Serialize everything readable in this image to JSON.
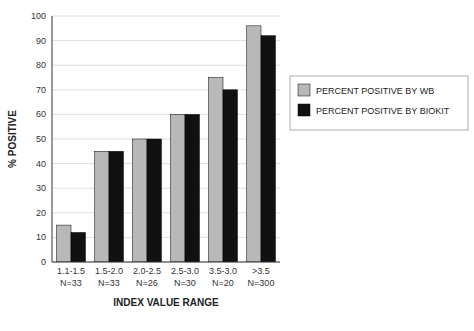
{
  "chart_data": {
    "type": "bar",
    "categories": [
      "1.1-1.5",
      "1.5-2.0",
      "2.0-2.5",
      "2.5-3.0",
      "3.5-3.0",
      ">3.5"
    ],
    "annotations": [
      "N=33",
      "N=33",
      "N=26",
      "N=30",
      "N=20",
      "N=300"
    ],
    "series": [
      {
        "name": "PERCENT POSITIVE BY WB",
        "color": "#b8b8b8",
        "values": [
          15,
          45,
          50,
          60,
          75,
          96
        ]
      },
      {
        "name": "PERCENT POSITIVE BY BIOKIT",
        "color": "#111111",
        "values": [
          12,
          45,
          50,
          60,
          70,
          92
        ]
      }
    ],
    "x_label": "INDEX VALUE RANGE",
    "y_label": "% POSITIVE",
    "ylim": [
      0,
      100
    ],
    "yticks": [
      0,
      10,
      20,
      30,
      40,
      50,
      60,
      70,
      80,
      90,
      100
    ],
    "grid": true,
    "legend": "right"
  }
}
